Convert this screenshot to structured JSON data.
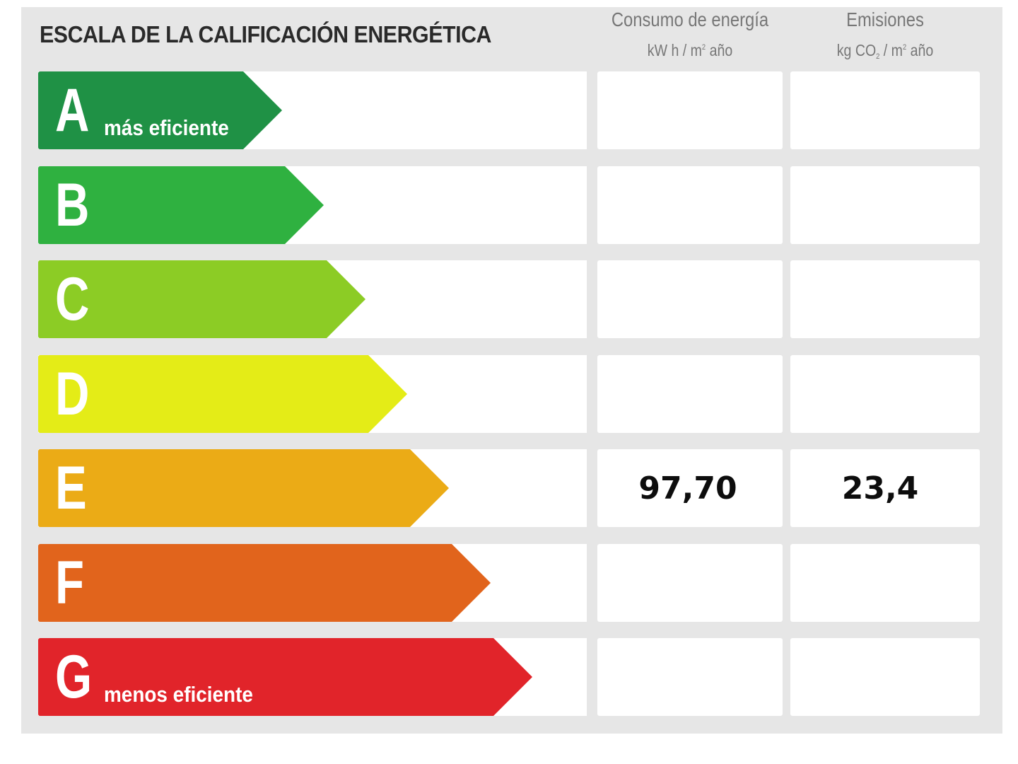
{
  "title": "ESCALA DE LA CALIFICACIÓN ENERGÉTICA",
  "columns": {
    "energy": {
      "heading": "Consumo de energía",
      "unit_main": "kW h / m",
      "unit_sup": "2",
      "unit_tail": " año"
    },
    "emissions": {
      "heading": "Emisiones",
      "unit_main": "kg CO",
      "unit_sub": "2",
      "unit_mid": " / m",
      "unit_sup": "2",
      "unit_tail": " año"
    }
  },
  "ratings": [
    {
      "letter": "A",
      "label": "más eficiente",
      "color": "#1f9145",
      "energy": "",
      "emissions": ""
    },
    {
      "letter": "B",
      "label": "",
      "color": "#2fb140",
      "energy": "",
      "emissions": ""
    },
    {
      "letter": "C",
      "label": "",
      "color": "#8ccc25",
      "energy": "",
      "emissions": ""
    },
    {
      "letter": "D",
      "label": "",
      "color": "#e4ec17",
      "energy": "",
      "emissions": ""
    },
    {
      "letter": "E",
      "label": "",
      "color": "#ebab16",
      "energy": "97,70",
      "emissions": "23,4"
    },
    {
      "letter": "F",
      "label": "",
      "color": "#e1641c",
      "energy": "",
      "emissions": ""
    },
    {
      "letter": "G",
      "label": "menos eficiente",
      "color": "#e1242a",
      "energy": "",
      "emissions": ""
    }
  ],
  "current_rating": "E"
}
